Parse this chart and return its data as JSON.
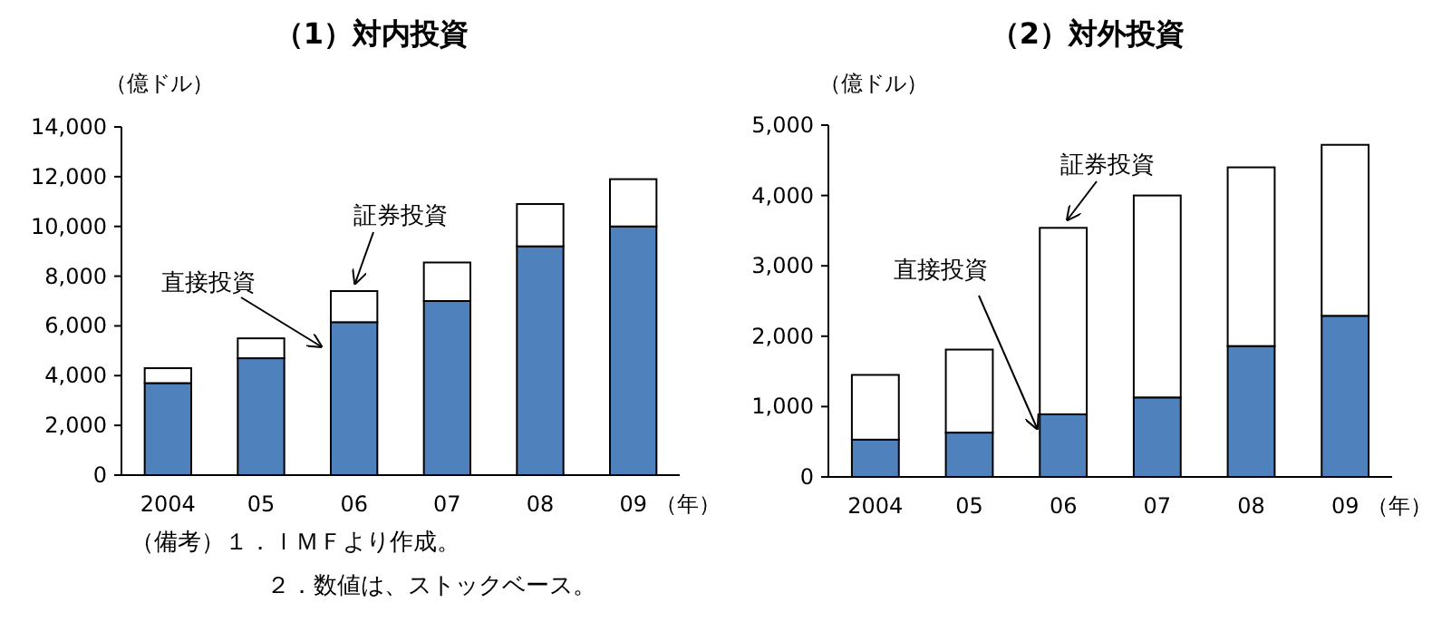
{
  "chart_data": [
    {
      "type": "bar",
      "title": "（1）対内投資",
      "ylabel": "（億ドル）",
      "xlabel": "（年）",
      "stacked": true,
      "grid": false,
      "categories": [
        "2004",
        "05",
        "06",
        "07",
        "08",
        "09"
      ],
      "ylim": [
        0,
        14000
      ],
      "yticks": [
        0,
        {
          "value": 2000,
          "label": "2,000"
        },
        {
          "value": 4000,
          "label": "4,000"
        },
        {
          "value": 6000,
          "label": "6,000"
        },
        {
          "value": 8000,
          "label": "8,000"
        },
        {
          "value": 10000,
          "label": "10,000"
        },
        {
          "value": 12000,
          "label": "12,000"
        },
        {
          "value": 14000,
          "label": "14,000"
        }
      ],
      "series": [
        {
          "name": "直接投資",
          "color": "#4f81bd",
          "values": [
            3700,
            4700,
            6150,
            7000,
            9200,
            10000
          ]
        },
        {
          "name": "証券投資",
          "color": "#ffffff",
          "values": [
            600,
            800,
            1250,
            1550,
            1700,
            1900
          ]
        }
      ],
      "annotations": [
        "（備考）１．ＩＭＦより作成。",
        "２．数値は、ストックベース。"
      ]
    },
    {
      "type": "bar",
      "title": "（2）対外投資",
      "ylabel": "（億ドル）",
      "xlabel": "（年）",
      "stacked": true,
      "grid": false,
      "categories": [
        "2004",
        "05",
        "06",
        "07",
        "08",
        "09"
      ],
      "ylim": [
        0,
        5000
      ],
      "yticks": [
        0,
        {
          "value": 1000,
          "label": "1,000"
        },
        {
          "value": 2000,
          "label": "2,000"
        },
        {
          "value": 3000,
          "label": "3,000"
        },
        {
          "value": 4000,
          "label": "4,000"
        },
        {
          "value": 5000,
          "label": "5,000"
        }
      ],
      "series": [
        {
          "name": "直接投資",
          "color": "#4f81bd",
          "values": [
            530,
            630,
            890,
            1130,
            1860,
            2290
          ]
        },
        {
          "name": "証券投資",
          "color": "#ffffff",
          "values": [
            920,
            1180,
            2650,
            2870,
            2540,
            2430
          ]
        }
      ]
    }
  ]
}
